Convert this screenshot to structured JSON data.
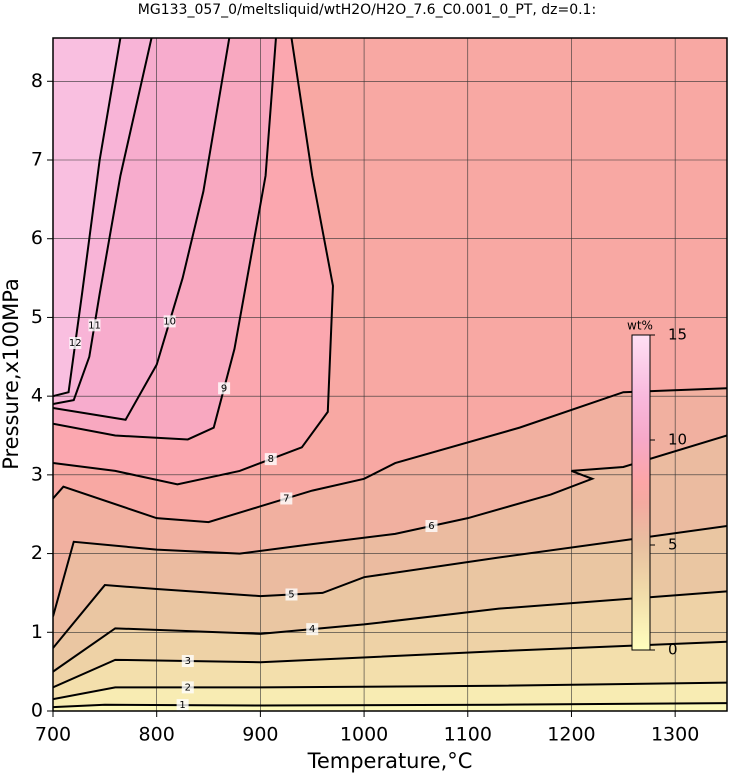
{
  "chart_data": {
    "type": "contour",
    "title": "MG133_057_0/meltsliquid/wtH2O/H2O_7.6_C0.001_0_PT, dz=0.1:",
    "x_label": "Temperature,°C",
    "y_label": "Pressure,x100MPa",
    "xlim": [
      700,
      1350
    ],
    "ylim": [
      0,
      8.55
    ],
    "xticks": [
      700,
      800,
      900,
      1000,
      1100,
      1200,
      1300
    ],
    "yticks": [
      0,
      1,
      2,
      3,
      4,
      5,
      6,
      7,
      8
    ],
    "grid": true,
    "colorbar": {
      "label": "wt%",
      "lim": [
        0,
        15
      ],
      "ticks": [
        0,
        5,
        10,
        15
      ],
      "colormap": [
        [
          0,
          "#ffffbe"
        ],
        [
          3,
          "#f0d8a8"
        ],
        [
          5,
          "#e8c0a0"
        ],
        [
          7,
          "#f4aaa0"
        ],
        [
          8,
          "#fca6a6"
        ],
        [
          10,
          "#f6a8c8"
        ],
        [
          12,
          "#f8b8dc"
        ],
        [
          15,
          "#ffe0f4"
        ]
      ]
    },
    "contours": [
      {
        "level": 1,
        "x": [
          700,
          750,
          900,
          1130,
          1350
        ],
        "y": [
          0.05,
          0.08,
          0.07,
          0.08,
          0.1
        ]
      },
      {
        "level": 2,
        "x": [
          700,
          760,
          900,
          1130,
          1350
        ],
        "y": [
          0.15,
          0.3,
          0.3,
          0.32,
          0.36
        ]
      },
      {
        "level": 3,
        "x": [
          700,
          760,
          900,
          1130,
          1350
        ],
        "y": [
          0.3,
          0.65,
          0.62,
          0.76,
          0.88
        ]
      },
      {
        "level": 4,
        "x": [
          700,
          760,
          900,
          1000,
          1130,
          1350
        ],
        "y": [
          0.5,
          1.05,
          0.98,
          1.1,
          1.3,
          1.52
        ]
      },
      {
        "level": 5,
        "x": [
          700,
          750,
          800,
          900,
          960,
          1000,
          1130,
          1350
        ],
        "y": [
          0.8,
          1.6,
          1.55,
          1.46,
          1.5,
          1.7,
          1.95,
          2.35
        ]
      },
      {
        "level": 6,
        "x": [
          700,
          720,
          800,
          880,
          950,
          1030,
          1100,
          1180,
          1220,
          1200,
          1250,
          1350
        ],
        "y": [
          1.2,
          2.15,
          2.05,
          2.0,
          2.12,
          2.25,
          2.45,
          2.75,
          2.95,
          3.05,
          3.1,
          3.5
        ]
      },
      {
        "level": 7,
        "x": [
          700,
          710,
          800,
          850,
          900,
          950,
          1000,
          1030,
          1150,
          1250,
          1350
        ],
        "y": [
          2.7,
          2.85,
          2.45,
          2.4,
          2.6,
          2.8,
          2.95,
          3.15,
          3.6,
          4.05,
          4.1
        ]
      },
      {
        "level": 8,
        "x": [
          700,
          760,
          820,
          880,
          940,
          965,
          970,
          950,
          930
        ],
        "y": [
          3.15,
          3.05,
          2.88,
          3.05,
          3.35,
          3.8,
          5.4,
          6.8,
          8.55
        ]
      },
      {
        "level": 9,
        "x": [
          700,
          760,
          830,
          855,
          875,
          890,
          905,
          915
        ],
        "y": [
          3.65,
          3.5,
          3.45,
          3.6,
          4.6,
          5.7,
          6.8,
          8.55
        ]
      },
      {
        "level": 10,
        "x": [
          700,
          770,
          800,
          825,
          845,
          870
        ],
        "y": [
          3.85,
          3.7,
          4.4,
          5.5,
          6.6,
          8.55
        ]
      },
      {
        "level": 11,
        "x": [
          700,
          720,
          735,
          745,
          765,
          795
        ],
        "y": [
          3.9,
          3.95,
          4.5,
          5.3,
          6.8,
          8.55
        ]
      },
      {
        "level": 12,
        "x": [
          700,
          715,
          728,
          745,
          765
        ],
        "y": [
          4.0,
          4.05,
          5.3,
          7.0,
          8.55
        ]
      }
    ]
  }
}
